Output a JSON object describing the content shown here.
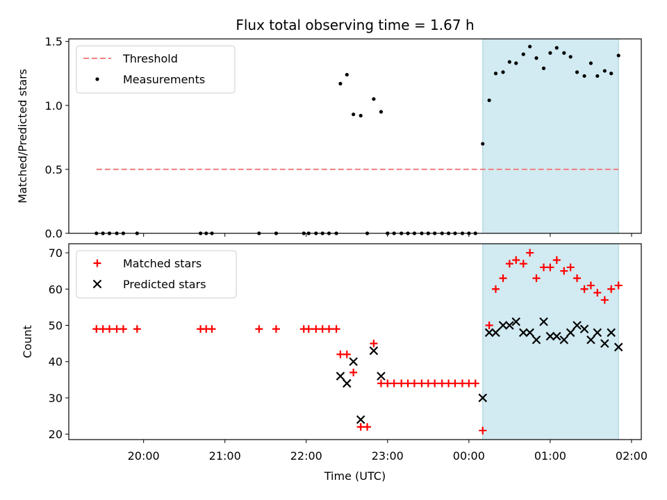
{
  "title": "Flux total observing time = 1.67 h",
  "chart_data": [
    {
      "type": "scatter",
      "ylabel": "Matched/Predicted stars",
      "ylim": [
        0,
        1.52
      ],
      "yticks": [
        "0.0",
        "0.5",
        "1.0",
        "1.5"
      ],
      "ytick_values": [
        0,
        0.5,
        1.0,
        1.5
      ],
      "legend_position": "upper-left",
      "shaded_interval": {
        "x": [
          24.17,
          25.84
        ],
        "color": "#add8e6"
      },
      "threshold": {
        "name": "Threshold",
        "value": 0.5,
        "x": [
          19.42,
          25.84
        ],
        "color": "#f08080",
        "style": "dashed"
      },
      "series": [
        {
          "name": "Measurements",
          "marker": "dot",
          "color": "#000000",
          "x": [
            19.42,
            19.5,
            19.58,
            19.67,
            19.75,
            19.92,
            20.7,
            20.77,
            20.84,
            21.42,
            21.63,
            21.97,
            22.03,
            22.12,
            22.2,
            22.28,
            22.37,
            22.42,
            22.5,
            22.58,
            22.67,
            22.75,
            22.83,
            22.92,
            23.0,
            23.08,
            23.17,
            23.25,
            23.33,
            23.42,
            23.5,
            23.58,
            23.67,
            23.75,
            23.83,
            23.92,
            24.0,
            24.08,
            24.17,
            24.25,
            24.33,
            24.42,
            24.5,
            24.58,
            24.67,
            24.75,
            24.83,
            24.92,
            25.0,
            25.08,
            25.17,
            25.25,
            25.33,
            25.42,
            25.5,
            25.58,
            25.67,
            25.75,
            25.84
          ],
          "y": [
            0,
            0,
            0,
            0,
            0,
            0,
            0,
            0,
            0,
            0,
            0,
            0,
            0,
            0,
            0,
            0,
            0,
            1.17,
            1.24,
            0.93,
            0.92,
            0,
            1.05,
            0.95,
            0,
            0,
            0,
            0,
            0,
            0,
            0,
            0,
            0,
            0,
            0,
            0,
            0,
            0,
            0.7,
            1.04,
            1.25,
            1.26,
            1.34,
            1.33,
            1.4,
            1.46,
            1.37,
            1.29,
            1.41,
            1.45,
            1.41,
            1.38,
            1.26,
            1.23,
            1.33,
            1.23,
            1.27,
            1.25,
            1.39
          ]
        }
      ]
    },
    {
      "type": "scatter",
      "xlabel": "Time (UTC)",
      "ylabel": "Count",
      "xlim": [
        19.08,
        26.12
      ],
      "ylim": [
        18.5,
        72.5
      ],
      "xticks": [
        "20:00",
        "21:00",
        "22:00",
        "23:00",
        "00:00",
        "01:00",
        "02:00"
      ],
      "xtick_values": [
        20,
        21,
        22,
        23,
        24,
        25,
        26
      ],
      "yticks": [
        "20",
        "30",
        "40",
        "50",
        "60",
        "70"
      ],
      "ytick_values": [
        20,
        30,
        40,
        50,
        60,
        70
      ],
      "legend_position": "upper-left",
      "shaded_interval": {
        "x": [
          24.17,
          25.84
        ],
        "color": "#add8e6"
      },
      "series": [
        {
          "name": "Matched stars",
          "marker": "plus",
          "color": "#ff0000",
          "x": [
            19.42,
            19.5,
            19.58,
            19.67,
            19.75,
            19.92,
            20.7,
            20.77,
            20.84,
            21.42,
            21.63,
            21.97,
            22.03,
            22.12,
            22.2,
            22.28,
            22.37,
            22.42,
            22.5,
            22.58,
            22.67,
            22.75,
            22.83,
            22.92,
            23.0,
            23.08,
            23.17,
            23.25,
            23.33,
            23.42,
            23.5,
            23.58,
            23.67,
            23.75,
            23.83,
            23.92,
            24.0,
            24.08,
            24.17,
            24.25,
            24.33,
            24.42,
            24.5,
            24.58,
            24.67,
            24.75,
            24.83,
            24.92,
            25.0,
            25.08,
            25.17,
            25.25,
            25.33,
            25.42,
            25.5,
            25.58,
            25.67,
            25.75,
            25.84
          ],
          "y": [
            49,
            49,
            49,
            49,
            49,
            49,
            49,
            49,
            49,
            49,
            49,
            49,
            49,
            49,
            49,
            49,
            49,
            42,
            42,
            37,
            22,
            22,
            45,
            34,
            34,
            34,
            34,
            34,
            34,
            34,
            34,
            34,
            34,
            34,
            34,
            34,
            34,
            34,
            21,
            50,
            60,
            63,
            67,
            68,
            67,
            70,
            63,
            66,
            66,
            68,
            65,
            66,
            63,
            60,
            61,
            59,
            57,
            60,
            61
          ]
        },
        {
          "name": "Predicted stars",
          "marker": "x",
          "color": "#000000",
          "x": [
            22.42,
            22.5,
            22.58,
            22.67,
            22.83,
            22.92,
            24.17,
            24.25,
            24.33,
            24.42,
            24.5,
            24.58,
            24.67,
            24.75,
            24.83,
            24.92,
            25.0,
            25.08,
            25.17,
            25.25,
            25.33,
            25.42,
            25.5,
            25.58,
            25.67,
            25.75,
            25.84
          ],
          "y": [
            36,
            34,
            40,
            24,
            43,
            36,
            30,
            48,
            48,
            50,
            50,
            51,
            48,
            48,
            46,
            51,
            47,
            47,
            46,
            48,
            50,
            49,
            46,
            48,
            45,
            48,
            44
          ]
        }
      ]
    }
  ]
}
